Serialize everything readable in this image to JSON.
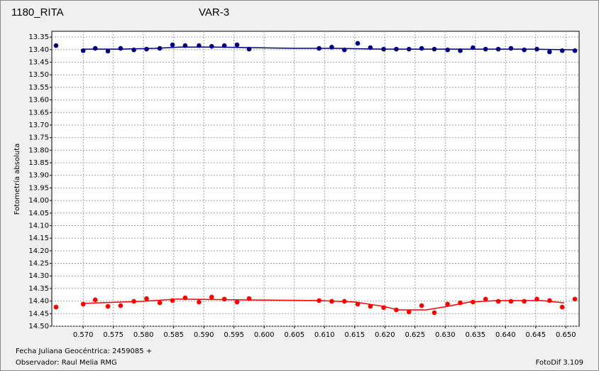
{
  "chart_data": {
    "type": "scatter",
    "title": "1180_RITA",
    "title_color": "#ff0000",
    "subtitle": "VAR-3",
    "subtitle_color": "#000080",
    "ylabel": "Fotometría absoluta",
    "xlabel": "Fecha Juliana Geocéntrica: 2459085 +",
    "observer": "Observador: Raul Melia RMG",
    "software": "FotoDif 3.109",
    "grid": true,
    "xlim": [
      0.5648,
      0.6522
    ],
    "ylim": [
      14.5,
      13.327
    ],
    "xticks": [
      {
        "value": 0.57,
        "label": "0.570"
      },
      {
        "value": 0.575,
        "label": "0.575"
      },
      {
        "value": 0.58,
        "label": "0.580"
      },
      {
        "value": 0.585,
        "label": "0.585"
      },
      {
        "value": 0.59,
        "label": "0.590"
      },
      {
        "value": 0.595,
        "label": "0.595"
      },
      {
        "value": 0.6,
        "label": "0.600"
      },
      {
        "value": 0.605,
        "label": "0.605"
      },
      {
        "value": 0.61,
        "label": "0.610"
      },
      {
        "value": 0.615,
        "label": "0.615"
      },
      {
        "value": 0.62,
        "label": "0.620"
      },
      {
        "value": 0.625,
        "label": "0.625"
      },
      {
        "value": 0.63,
        "label": "0.630"
      },
      {
        "value": 0.635,
        "label": "0.635"
      },
      {
        "value": 0.64,
        "label": "0.640"
      },
      {
        "value": 0.645,
        "label": "0.645"
      },
      {
        "value": 0.65,
        "label": "0.650"
      }
    ],
    "yticks": [
      {
        "value": 13.35,
        "label": "13.35"
      },
      {
        "value": 13.4,
        "label": "13.40"
      },
      {
        "value": 13.45,
        "label": "13.45"
      },
      {
        "value": 13.5,
        "label": "13.50"
      },
      {
        "value": 13.55,
        "label": "13.55"
      },
      {
        "value": 13.6,
        "label": "13.60"
      },
      {
        "value": 13.65,
        "label": "13.65"
      },
      {
        "value": 13.7,
        "label": "13.70"
      },
      {
        "value": 13.75,
        "label": "13.75"
      },
      {
        "value": 13.8,
        "label": "13.80"
      },
      {
        "value": 13.85,
        "label": "13.85"
      },
      {
        "value": 13.9,
        "label": "13.90"
      },
      {
        "value": 13.95,
        "label": "13.95"
      },
      {
        "value": 14.0,
        "label": "14.00"
      },
      {
        "value": 14.05,
        "label": "14.05"
      },
      {
        "value": 14.1,
        "label": "14.10"
      },
      {
        "value": 14.15,
        "label": "14.15"
      },
      {
        "value": 14.2,
        "label": "14.20"
      },
      {
        "value": 14.25,
        "label": "14.25"
      },
      {
        "value": 14.3,
        "label": "14.30"
      },
      {
        "value": 14.35,
        "label": "14.35"
      },
      {
        "value": 14.4,
        "label": "14.40"
      },
      {
        "value": 14.45,
        "label": "14.45"
      },
      {
        "value": 14.5,
        "label": "14.50"
      }
    ],
    "series": [
      {
        "type": "points",
        "color": "#000080",
        "x": [
          0.5655,
          0.57,
          0.572,
          0.5741,
          0.5762,
          0.5784,
          0.5805,
          0.5827,
          0.5848,
          0.5869,
          0.5892,
          0.5913,
          0.5934,
          0.5955,
          0.5975,
          0.6091,
          0.6112,
          0.6133,
          0.6155,
          0.6176,
          0.6198,
          0.6219,
          0.624,
          0.6261,
          0.6282,
          0.6304,
          0.6325,
          0.6346,
          0.6367,
          0.6388,
          0.6409,
          0.6431,
          0.6452,
          0.6473,
          0.6494,
          0.6515
        ],
        "values": [
          13.384,
          13.404,
          13.395,
          13.406,
          13.395,
          13.401,
          13.398,
          13.395,
          13.381,
          13.384,
          13.384,
          13.387,
          13.384,
          13.381,
          13.398,
          13.395,
          13.39,
          13.401,
          13.375,
          13.392,
          13.398,
          13.398,
          13.398,
          13.395,
          13.398,
          13.401,
          13.404,
          13.392,
          13.398,
          13.398,
          13.395,
          13.401,
          13.398,
          13.409,
          13.404,
          13.404
        ]
      },
      {
        "type": "line",
        "color": "#000080",
        "x": [
          0.57,
          0.576,
          0.582,
          0.586,
          0.592,
          0.5975,
          0.605,
          0.612,
          0.62,
          0.628,
          0.636,
          0.644,
          0.6515
        ],
        "values": [
          13.398,
          13.398,
          13.395,
          13.39,
          13.39,
          13.392,
          13.395,
          13.395,
          13.398,
          13.398,
          13.398,
          13.398,
          13.401
        ]
      },
      {
        "type": "points",
        "color": "#ff0000",
        "x": [
          0.5655,
          0.57,
          0.572,
          0.5741,
          0.5762,
          0.5784,
          0.5805,
          0.5827,
          0.5848,
          0.5869,
          0.5892,
          0.5913,
          0.5934,
          0.5955,
          0.5975,
          0.6091,
          0.6112,
          0.6133,
          0.6155,
          0.6176,
          0.6198,
          0.6219,
          0.624,
          0.6261,
          0.6282,
          0.6304,
          0.6325,
          0.6346,
          0.6367,
          0.6388,
          0.6409,
          0.6431,
          0.6452,
          0.6473,
          0.6494,
          0.6515
        ],
        "values": [
          14.424,
          14.412,
          14.395,
          14.421,
          14.418,
          14.401,
          14.39,
          14.407,
          14.398,
          14.387,
          14.404,
          14.384,
          14.392,
          14.404,
          14.39,
          14.398,
          14.401,
          14.401,
          14.412,
          14.421,
          14.426,
          14.435,
          14.443,
          14.418,
          14.446,
          14.412,
          14.407,
          14.404,
          14.392,
          14.401,
          14.401,
          14.401,
          14.392,
          14.398,
          14.424,
          14.392
        ]
      },
      {
        "type": "line",
        "color": "#ff0000",
        "x": [
          0.57,
          0.5798,
          0.5856,
          0.5962,
          0.6091,
          0.6151,
          0.6198,
          0.6222,
          0.6269,
          0.6304,
          0.634,
          0.6388,
          0.6459,
          0.6497
        ],
        "values": [
          14.409,
          14.401,
          14.392,
          14.395,
          14.398,
          14.404,
          14.421,
          14.435,
          14.435,
          14.421,
          14.404,
          14.398,
          14.398,
          14.407
        ]
      }
    ]
  }
}
